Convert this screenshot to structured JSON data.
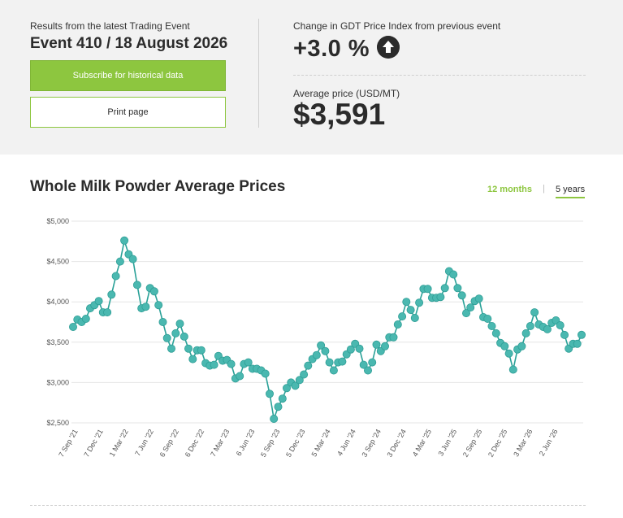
{
  "header": {
    "event_subtitle": "Results from the latest Trading Event",
    "event_title": "Event 410 / 18 August 2026",
    "subscribe_label": "Subscribe for historical data",
    "print_label": "Print page",
    "change_label": "Change in GDT Price Index from previous event",
    "change_value": "+3.0 %",
    "change_icon": "arrow-up-circle-icon",
    "avg_label": "Average price (USD/MT)",
    "avg_value": "$3,591"
  },
  "tabs": {
    "twelve_months": "12 months",
    "separator": "|",
    "five_years": "5 years",
    "selected": "5 years"
  },
  "colors": {
    "accent_green": "#8dc63f",
    "series_line": "#2aa198",
    "series_marker": "#4ab8b0",
    "text_dark": "#2b2b2b"
  },
  "chart_data": {
    "type": "line",
    "title": "Whole Milk Powder Average Prices",
    "xlabel": "",
    "ylabel": "",
    "ylim": [
      2500,
      5000
    ],
    "yticks": [
      2500,
      3000,
      3500,
      4000,
      4500,
      5000
    ],
    "ytick_labels": [
      "$2,500",
      "$3,000",
      "$3,500",
      "$4,000",
      "$4,500",
      "$5,000"
    ],
    "xtick_labels": [
      "7 Sep '21",
      "7 Dec '21",
      "1 Mar '22",
      "7 Jun '22",
      "6 Sep '22",
      "6 Dec '22",
      "7 Mar '23",
      "6 Jun '23",
      "5 Sep '23",
      "5 Dec '23",
      "5 Mar '24",
      "4 Jun '24",
      "3 Sep '24",
      "3 Dec '24",
      "4 Mar '25",
      "3 Jun '25",
      "2 Sep '25",
      "2 Dec '25",
      "3 Mar '26",
      "2 Jun '26"
    ],
    "grid": true,
    "legend": "none",
    "series": [
      {
        "values": [
          3690,
          3780,
          3750,
          3790,
          3920,
          3960,
          4010,
          3870,
          3870,
          4090,
          4320,
          4500,
          4760,
          4590,
          4530,
          4210,
          3920,
          3940,
          4170,
          4130,
          3960,
          3750,
          3550,
          3420,
          3610,
          3730,
          3570,
          3420,
          3290,
          3400,
          3400,
          3240,
          3210,
          3220,
          3330,
          3270,
          3280,
          3230,
          3050,
          3080,
          3230,
          3250,
          3170,
          3170,
          3150,
          3110,
          2860,
          2550,
          2700,
          2800,
          2930,
          3000,
          2960,
          3030,
          3100,
          3210,
          3290,
          3340,
          3460,
          3390,
          3250,
          3150,
          3250,
          3260,
          3350,
          3410,
          3480,
          3420,
          3220,
          3150,
          3250,
          3470,
          3390,
          3450,
          3560,
          3560,
          3720,
          3820,
          4000,
          3900,
          3800,
          3990,
          4160,
          4160,
          4050,
          4050,
          4060,
          4170,
          4380,
          4340,
          4170,
          4080,
          3860,
          3930,
          4010,
          4040,
          3810,
          3790,
          3700,
          3610,
          3490,
          3450,
          3360,
          3160,
          3410,
          3450,
          3610,
          3700,
          3870,
          3720,
          3690,
          3660,
          3740,
          3770,
          3710,
          3590,
          3420,
          3480,
          3480,
          3591
        ]
      }
    ]
  }
}
